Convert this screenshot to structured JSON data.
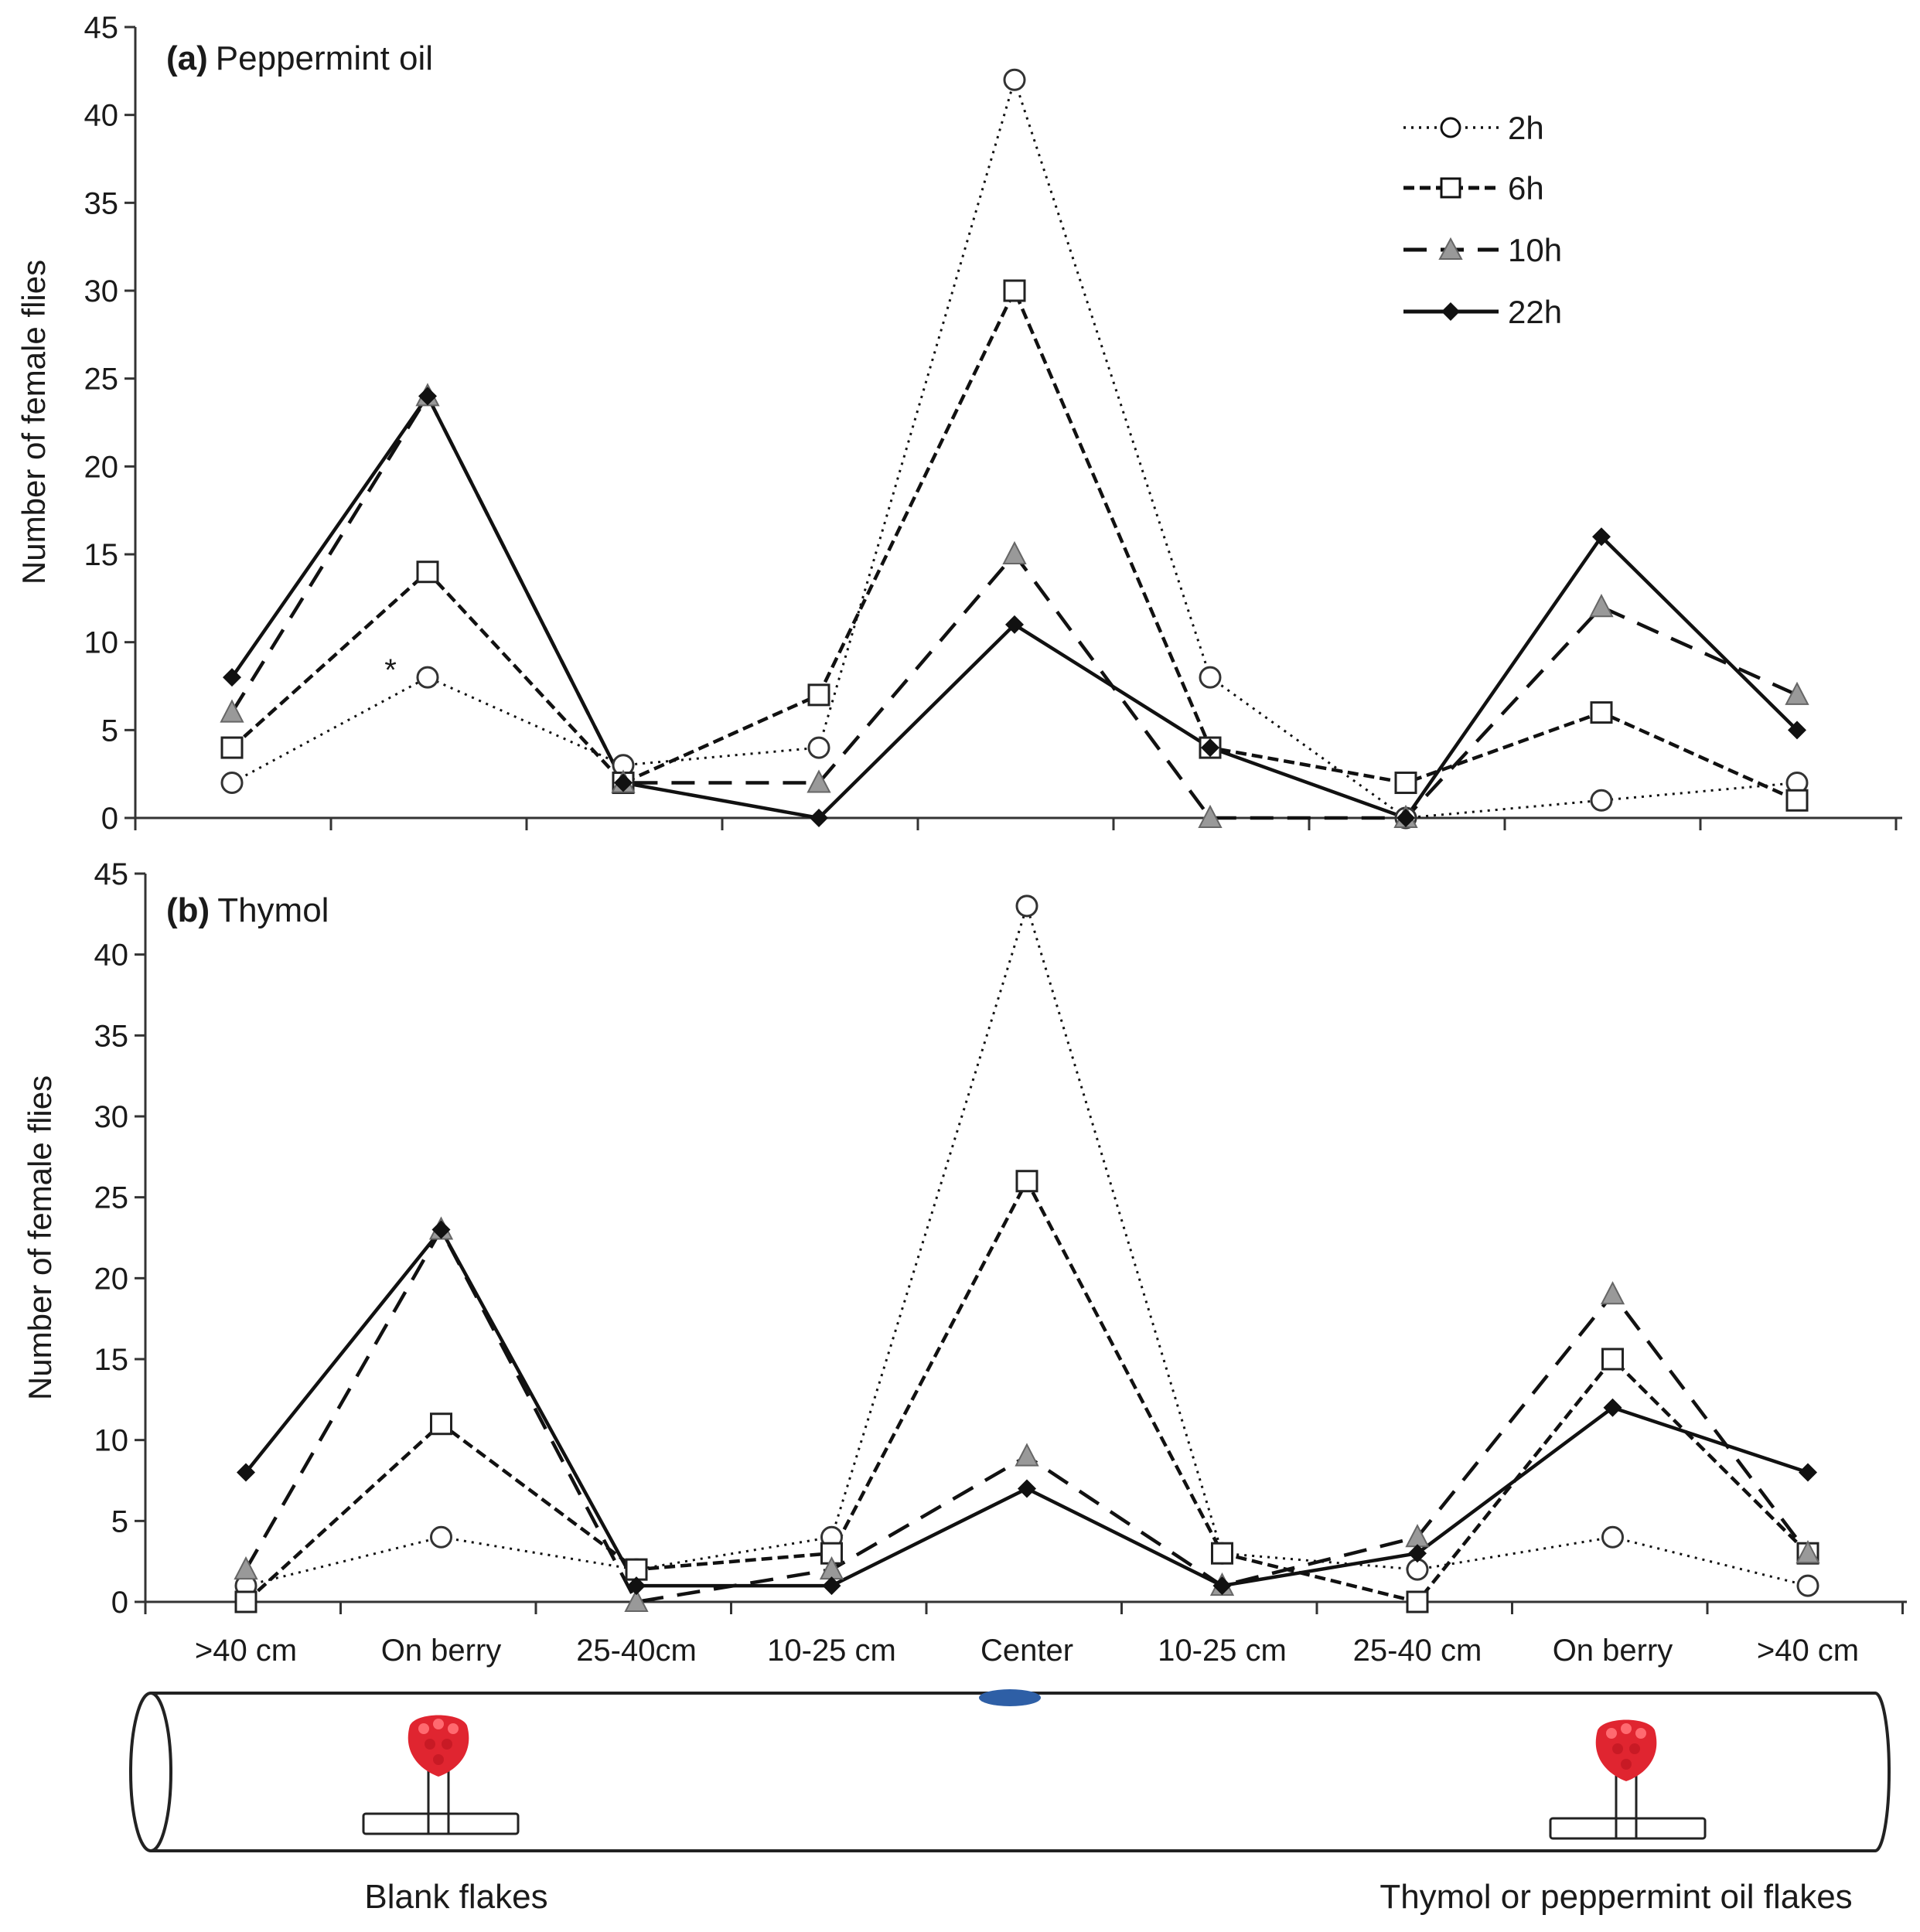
{
  "chart_data": [
    {
      "type": "line",
      "panel_id": "(a)",
      "title": "Peppermint  oil",
      "ylabel": "Number  of female flies",
      "ylim": [
        0,
        45
      ],
      "yticks": [
        "0",
        "5",
        "10",
        "15",
        "20",
        "25",
        "30",
        "35",
        "40",
        "45"
      ],
      "categories": [
        ">40 cm",
        "On berry",
        "25-40cm",
        "10-25 cm",
        "Center",
        "10-25 cm",
        "25-40 cm",
        "On berry",
        ">40 cm"
      ],
      "annotation": "*",
      "series": [
        {
          "name": "2h",
          "values": [
            2,
            8,
            3,
            4,
            42,
            8,
            0,
            1,
            2
          ]
        },
        {
          "name": "6h",
          "values": [
            4,
            14,
            2,
            7,
            30,
            4,
            2,
            6,
            1
          ]
        },
        {
          "name": "10h",
          "values": [
            6,
            24,
            2,
            2,
            15,
            0,
            0,
            12,
            7
          ]
        },
        {
          "name": "22h",
          "values": [
            8,
            24,
            2,
            0,
            11,
            4,
            0,
            16,
            5
          ]
        }
      ],
      "legend": [
        "2h",
        "6h",
        "10h",
        "22h"
      ]
    },
    {
      "type": "line",
      "panel_id": "(b)",
      "title": "Thymol",
      "ylabel": "Number  of female flies",
      "ylim": [
        0,
        45
      ],
      "yticks": [
        "0",
        "5",
        "10",
        "15",
        "20",
        "25",
        "30",
        "35",
        "40",
        "45"
      ],
      "categories": [
        ">40 cm",
        "On berry",
        "25-40cm",
        "10-25 cm",
        "Center",
        "10-25 cm",
        "25-40 cm",
        "On berry",
        ">40 cm"
      ],
      "series": [
        {
          "name": "2h",
          "values": [
            1,
            4,
            2,
            4,
            43,
            3,
            2,
            4,
            1
          ]
        },
        {
          "name": "6h",
          "values": [
            0,
            11,
            2,
            3,
            26,
            3,
            0,
            15,
            3
          ]
        },
        {
          "name": "10h",
          "values": [
            2,
            23,
            0,
            2,
            9,
            1,
            4,
            19,
            3
          ]
        },
        {
          "name": "22h",
          "values": [
            8,
            23,
            1,
            1,
            7,
            1,
            3,
            12,
            8
          ]
        }
      ]
    }
  ],
  "diagram": {
    "left_label": "Blank flakes",
    "right_label": "Thymol or peppermint  oil flakes"
  },
  "colors": {
    "line": "#111111",
    "marker_open": "#ffffff",
    "marker_triangle": "#999999",
    "berry": "#e02530",
    "center_mark": "#2e5fa6"
  }
}
